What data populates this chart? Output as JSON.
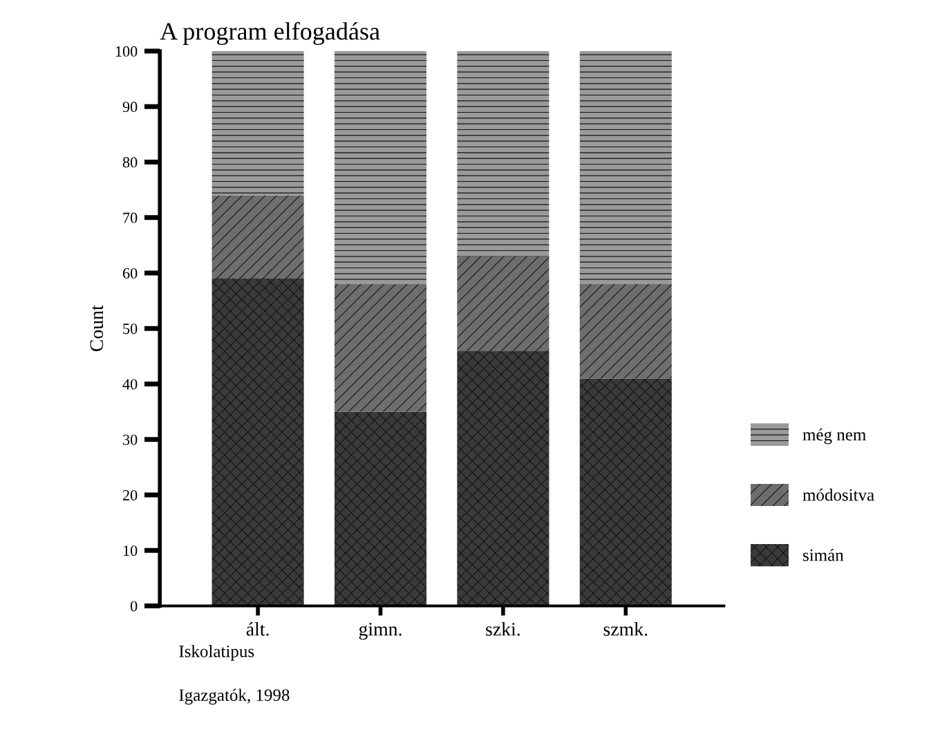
{
  "chart_data": {
    "type": "bar",
    "title": "A program elfogadása",
    "xlabel": "Iskolatipus",
    "ylabel": "Count",
    "annotations": [
      "Igazgatók, 1998"
    ],
    "categories": [
      "ált.",
      "gimn.",
      "szki.",
      "szmk."
    ],
    "stacked": true,
    "series": [
      {
        "name": "simán",
        "color": "#3a3a3a",
        "values": [
          59,
          35,
          46,
          41
        ]
      },
      {
        "name": "módositva",
        "color": "#6e6e6e",
        "values": [
          15,
          23,
          17,
          17
        ]
      },
      {
        "name": "még nem",
        "color": "#9a9a9a",
        "values": [
          26,
          42,
          37,
          42
        ]
      }
    ],
    "ylim": [
      0,
      100
    ],
    "yticks": [
      0,
      10,
      20,
      30,
      40,
      50,
      60,
      70,
      80,
      90,
      100
    ],
    "grid": false,
    "legend": "right"
  }
}
